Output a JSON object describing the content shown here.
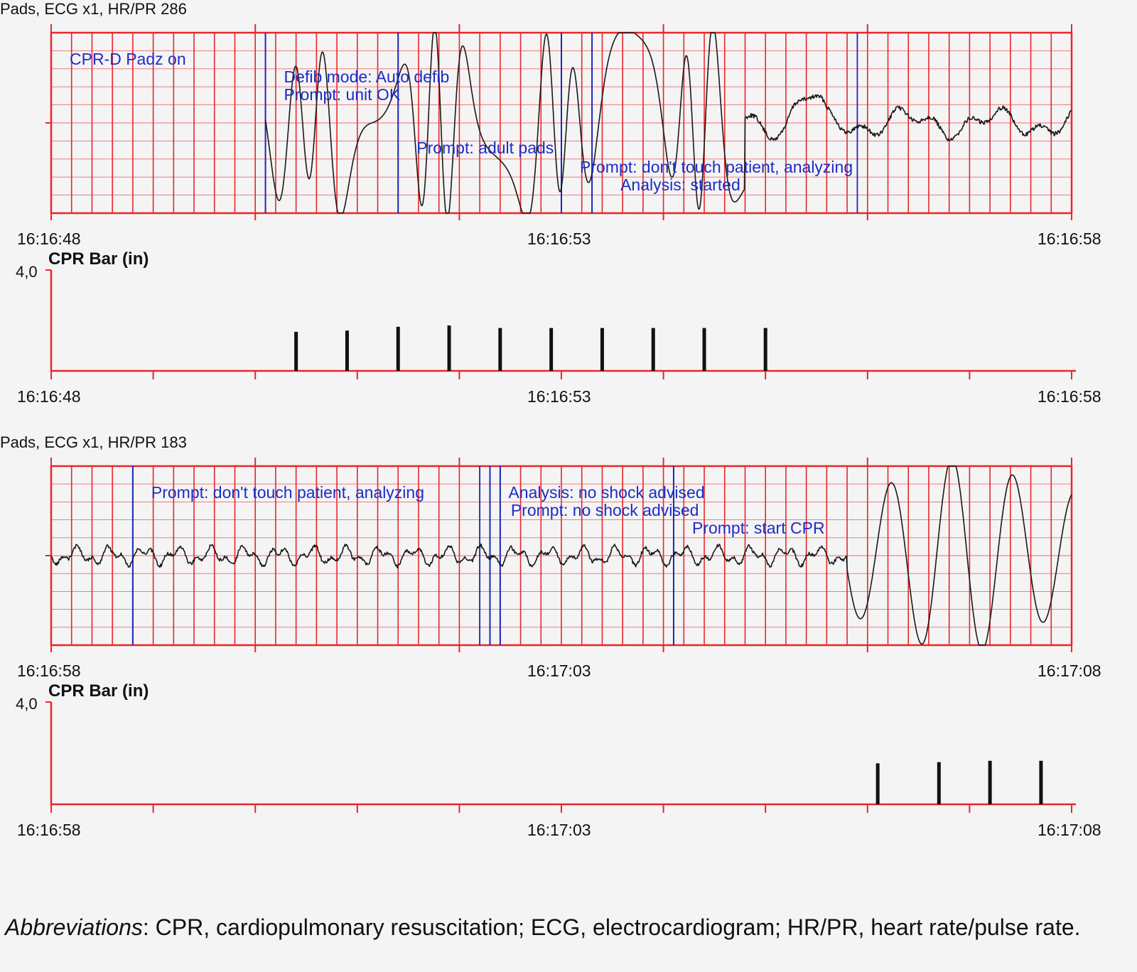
{
  "colors": {
    "grid": "#e8272b",
    "trace": "#1a1a1a",
    "marker": "#1a29b8",
    "annotation": "#1f2cc6",
    "bar": "#111111",
    "text": "#111111"
  },
  "chart_data": [
    {
      "type": "line",
      "title": "Pads, ECG x1, HR/PR 286",
      "x_ticks": [
        "16:16:48",
        "16:16:53",
        "16:16:58"
      ],
      "xlim_seconds_from_start": [
        0,
        10
      ],
      "annotations": [
        {
          "t": 0.0,
          "text": "CPR-D Padz on"
        },
        {
          "t": 2.1,
          "text": "Defib mode: Auto defib"
        },
        {
          "t": 2.1,
          "text": "Prompt: unit OK"
        },
        {
          "t": 3.4,
          "text": "Prompt: adult pads"
        },
        {
          "t": 5.0,
          "text": "Prompt: don't touch patient, analyzing"
        },
        {
          "t": 5.3,
          "text": "Analysis: started"
        }
      ]
    },
    {
      "type": "bar",
      "title": "CPR Bar (in)",
      "y_tick_top": "4,0",
      "ylim": [
        0,
        4.0
      ],
      "x_ticks": [
        "16:16:48",
        "16:16:53",
        "16:16:58"
      ],
      "compressions": [
        {
          "t": 2.4,
          "depth": 1.55
        },
        {
          "t": 2.9,
          "depth": 1.6
        },
        {
          "t": 3.4,
          "depth": 1.75
        },
        {
          "t": 3.9,
          "depth": 1.8
        },
        {
          "t": 4.4,
          "depth": 1.7
        },
        {
          "t": 4.9,
          "depth": 1.7
        },
        {
          "t": 5.4,
          "depth": 1.7
        },
        {
          "t": 5.9,
          "depth": 1.7
        },
        {
          "t": 6.4,
          "depth": 1.7
        },
        {
          "t": 7.0,
          "depth": 1.7
        }
      ]
    },
    {
      "type": "line",
      "title": "Pads, ECG x1, HR/PR 183",
      "x_ticks": [
        "16:16:58",
        "16:17:03",
        "16:17:08"
      ],
      "xlim_seconds_from_start": [
        0,
        10
      ],
      "annotations": [
        {
          "t": 0.8,
          "text": "Prompt: don't touch patient, analyzing"
        },
        {
          "t": 4.3,
          "text": "Analysis: no shock advised"
        },
        {
          "t": 4.4,
          "text": "Prompt: no shock advised"
        },
        {
          "t": 6.1,
          "text": "Prompt: start CPR"
        }
      ]
    },
    {
      "type": "bar",
      "title": "CPR Bar (in)",
      "y_tick_top": "4,0",
      "ylim": [
        0,
        4.0
      ],
      "x_ticks": [
        "16:16:58",
        "16:17:03",
        "16:17:08"
      ],
      "compressions": [
        {
          "t": 8.1,
          "depth": 1.6
        },
        {
          "t": 8.7,
          "depth": 1.65
        },
        {
          "t": 9.2,
          "depth": 1.7
        },
        {
          "t": 9.7,
          "depth": 1.7
        }
      ]
    }
  ],
  "caption": {
    "abbr_label": "Abbreviations",
    "text": ": CPR, cardiopulmonary resuscitation; ECG, electrocardiogram; HR/PR, heart rate/pulse rate."
  }
}
